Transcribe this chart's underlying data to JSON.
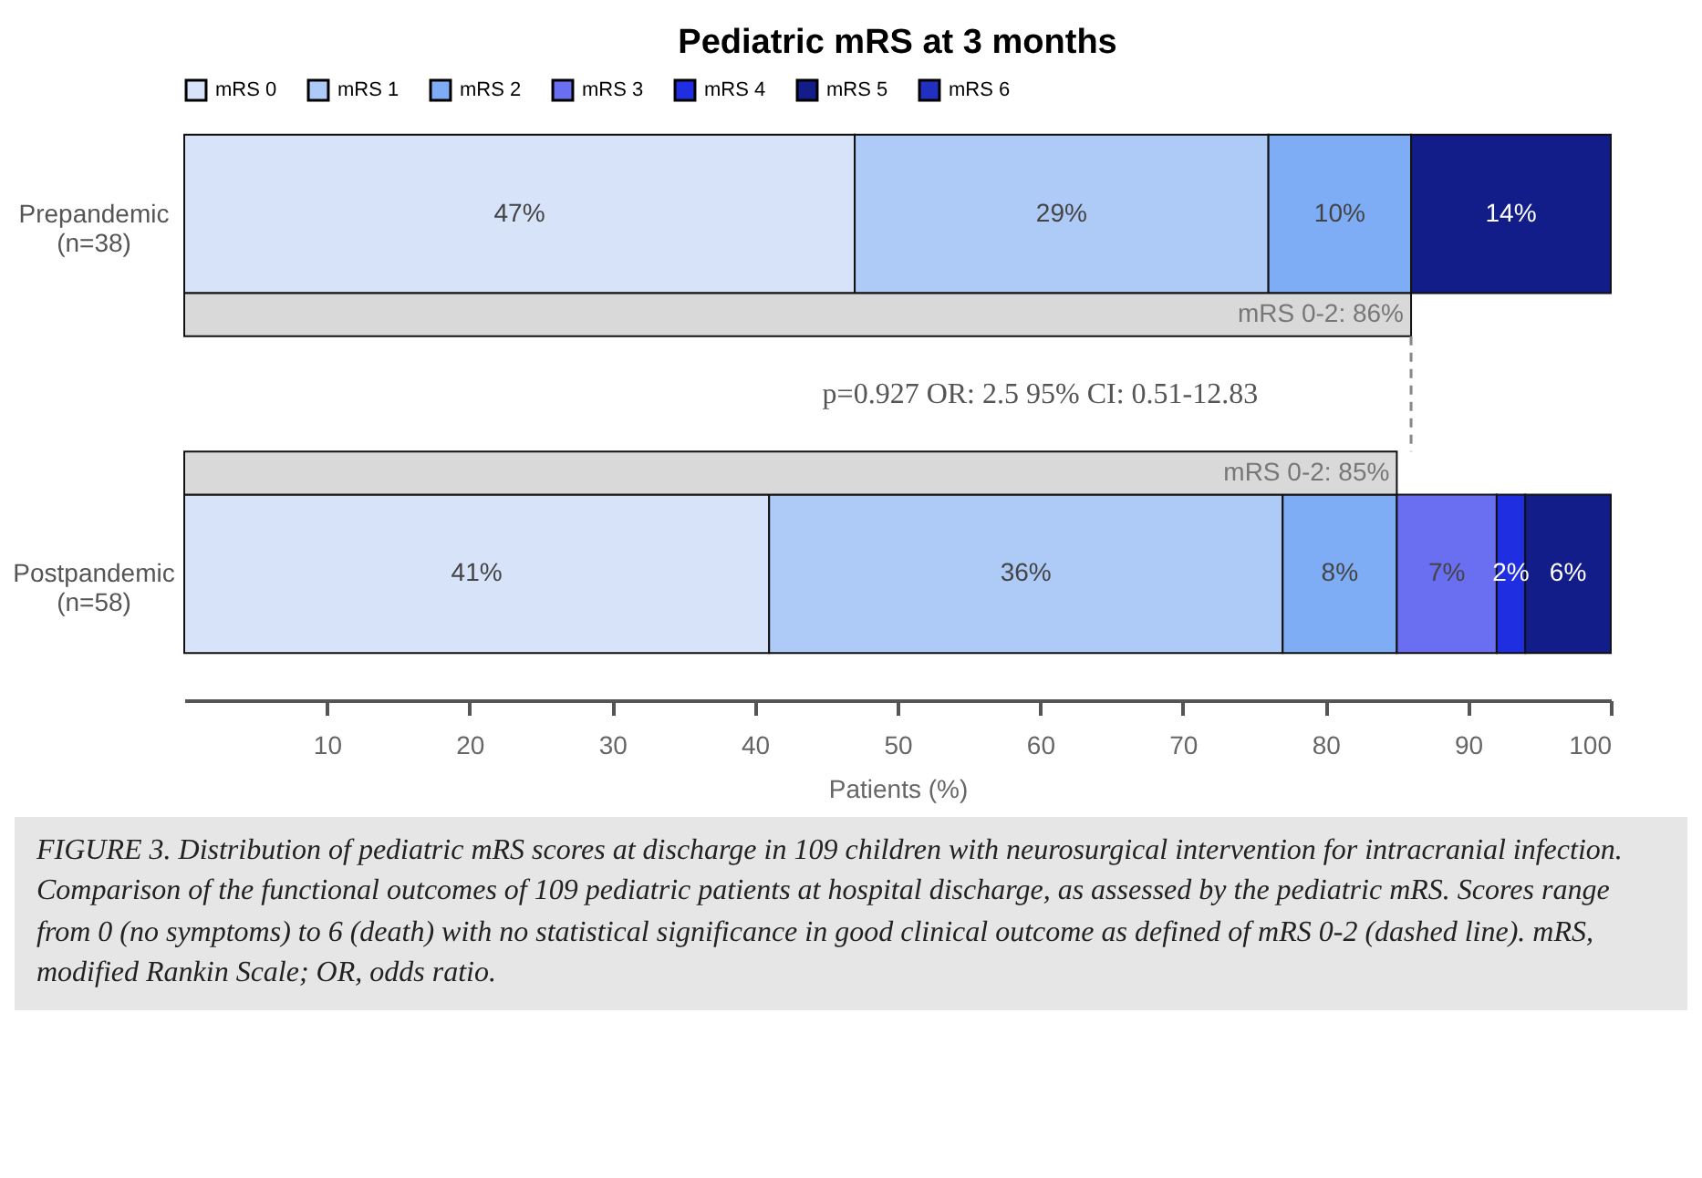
{
  "chart_data": {
    "type": "bar",
    "orientation": "horizontal",
    "stacked": true,
    "title": "Pediatric mRS at 3 months",
    "xlabel": "Patients (%)",
    "categories": [
      "Prepandemic (n=38)",
      null,
      null,
      "Postpandemic (n=58)"
    ],
    "series": [
      {
        "name": "mRS 0",
        "color": "#d6e3f8",
        "values": [
          47,
          null,
          null,
          41
        ],
        "value_labels": [
          "47%",
          null,
          null,
          "41%"
        ]
      },
      {
        "name": "mRS 1",
        "color": "#aecbf7",
        "values": [
          29,
          null,
          null,
          36
        ],
        "value_labels": [
          "29%",
          null,
          null,
          "36%"
        ]
      },
      {
        "name": "mRS 2",
        "color": "#7eadf5",
        "values": [
          10,
          null,
          null,
          8
        ],
        "value_labels": [
          "10%",
          null,
          null,
          "8%"
        ]
      },
      {
        "name": "mRS 3",
        "color": "#6a6ef0",
        "values": [
          null,
          null,
          null,
          7
        ],
        "value_labels": [
          null,
          null,
          null,
          "7%"
        ]
      },
      {
        "name": "mRS 4",
        "color": "#1f2ee0",
        "values": [
          null,
          null,
          null,
          2
        ],
        "value_labels": [
          null,
          null,
          null,
          "2%"
        ]
      },
      {
        "name": "mRS 5",
        "color": "#131d8a",
        "values": [
          14,
          null,
          null,
          6
        ],
        "value_labels": [
          "14%",
          null,
          null,
          "6%"
        ]
      },
      {
        "name": "mRS 6",
        "color": "#2230c0",
        "values": [
          null,
          null,
          null,
          null
        ],
        "value_labels": [
          null,
          null,
          null,
          null
        ]
      },
      {
        "color": "#d9d9d9",
        "values": [
          null,
          86,
          85,
          null
        ],
        "value_labels": [
          null,
          "mRS 0-2: 86%",
          "mRS 0-2: 85%",
          null
        ]
      }
    ],
    "xlim": [
      0,
      100
    ],
    "xticks": [
      10,
      20,
      30,
      40,
      50,
      60,
      70,
      80,
      90,
      100
    ],
    "ref_lines": [
      {
        "axis": "x",
        "value": 86,
        "line_style": "dashed",
        "color": "#888888"
      }
    ],
    "grid": false,
    "legend": "top left",
    "annotations": [
      "p=0.927 OR: 2.5 95% CI: 0.51-12.83",
      "FIGURE 3. Distribution of pediatric mRS scores at discharge in 109 children with neurosurgical intervention for intracranial infection. Comparison of the functional outcomes of 109 pediatric patients at hospital discharge, as assessed by the pediatric mRS. Scores range from 0 (no symptoms) to 6 (death) with no statistical significance in good clinical outcome as defined of mRS 0-2 (dashed line). mRS, modified Rankin Scale; OR, odds ratio."
    ]
  }
}
